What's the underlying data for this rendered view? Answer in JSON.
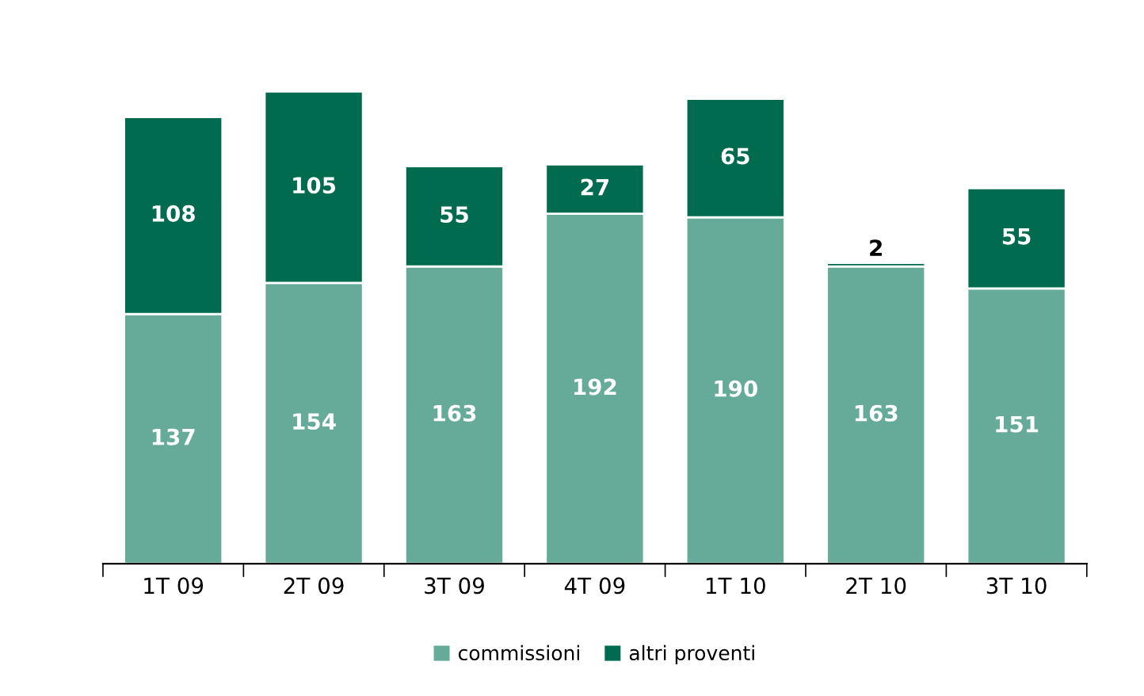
{
  "chart_data": {
    "type": "bar",
    "stacked": true,
    "data_labels": true,
    "legend": "bottom",
    "categories": [
      "1T 09",
      "2T 09",
      "3T 09",
      "4T 09",
      "1T 10",
      "2T 10",
      "3T 10"
    ],
    "series": [
      {
        "name": "commissioni",
        "color": "#66ab99",
        "values": [
          137,
          154,
          163,
          192,
          190,
          163,
          151
        ]
      },
      {
        "name": "altri proventi",
        "color": "#006b4e",
        "values": [
          108,
          105,
          55,
          27,
          65,
          2,
          55
        ]
      }
    ]
  }
}
